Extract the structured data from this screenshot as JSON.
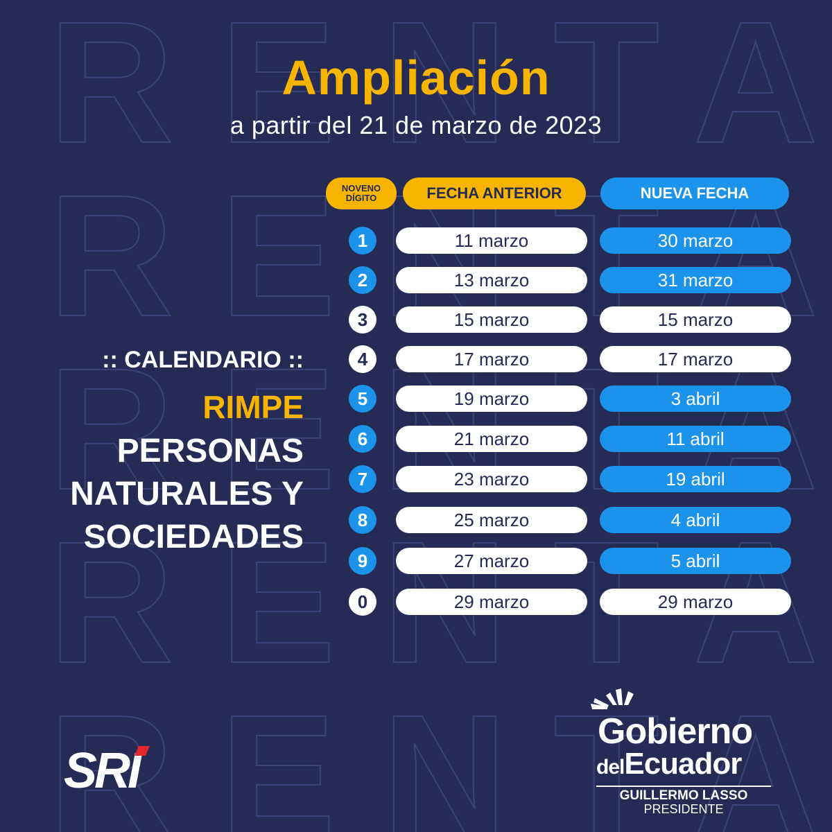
{
  "background_word": "RENTA",
  "header": {
    "title": "Ampliación",
    "subtitle": "a partir del 21 de marzo de 2023"
  },
  "side": {
    "calendario": ":: CALENDARIO ::",
    "rimpe": "RIMPE",
    "personas_line1": "PERSONAS",
    "personas_line2": "NATURALES Y",
    "personas_line3": "SOCIEDADES"
  },
  "table": {
    "col_digit": "NOVENO DÍGITO",
    "col_digit_line1": "NOVENO",
    "col_digit_line2": "DÍGITO",
    "col_prev": "FECHA ANTERIOR",
    "col_new": "NUEVA FECHA",
    "rows": [
      {
        "digit": "1",
        "prev": "11 marzo",
        "new": "30 marzo",
        "changed": true
      },
      {
        "digit": "2",
        "prev": "13 marzo",
        "new": "31 marzo",
        "changed": true
      },
      {
        "digit": "3",
        "prev": "15 marzo",
        "new": "15 marzo",
        "changed": false
      },
      {
        "digit": "4",
        "prev": "17 marzo",
        "new": "17 marzo",
        "changed": false
      },
      {
        "digit": "5",
        "prev": "19 marzo",
        "new": "3 abril",
        "changed": true
      },
      {
        "digit": "6",
        "prev": "21 marzo",
        "new": "11 abril",
        "changed": true
      },
      {
        "digit": "7",
        "prev": "23 marzo",
        "new": "19 abril",
        "changed": true
      },
      {
        "digit": "8",
        "prev": "25 marzo",
        "new": "4 abril",
        "changed": true
      },
      {
        "digit": "9",
        "prev": "27 marzo",
        "new": "5 abril",
        "changed": true
      },
      {
        "digit": "0",
        "prev": "29 marzo",
        "new": "29 marzo",
        "changed": false
      }
    ]
  },
  "footer": {
    "sri_logo": "SRI",
    "gob_line1": "Gobierno",
    "gob_line2a": "del",
    "gob_line2b": "Ecuador",
    "gob_name": "GUILLERMO LASSO",
    "gob_role": "PRESIDENTE"
  },
  "colors": {
    "background": "#252b55",
    "accent_yellow": "#f7b500",
    "accent_blue": "#1c93ea",
    "white": "#ffffff"
  }
}
